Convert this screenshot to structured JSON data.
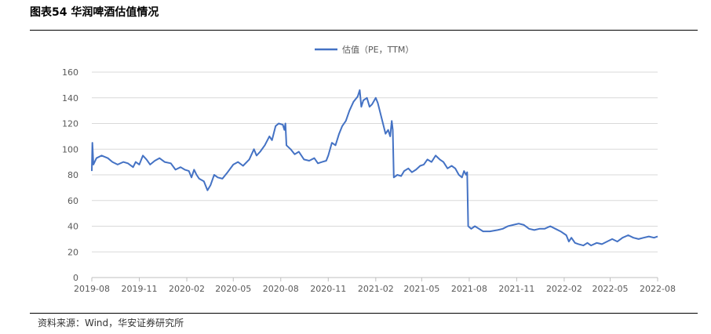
{
  "figure": {
    "title": "图表54 华润啤酒估值情况",
    "source": "资料来源：Wind，华安证券研究所"
  },
  "chart_data": {
    "type": "line",
    "xlabel": "",
    "ylabel": "",
    "ylim": [
      0,
      160
    ],
    "yticks": [
      0,
      20,
      40,
      60,
      80,
      100,
      120,
      140,
      160
    ],
    "xticks": [
      "2019-08",
      "2019-11",
      "2020-02",
      "2020-05",
      "2020-08",
      "2020-11",
      "2021-02",
      "2021-05",
      "2021-08",
      "2021-11",
      "2022-02",
      "2022-05",
      "2022-08"
    ],
    "grid": "horizontal",
    "legend_position": "top-center",
    "series": [
      {
        "name": "估值（PE，TTM）",
        "color": "#4472C4",
        "points": [
          [
            "2019-08-01",
            83
          ],
          [
            "2019-08-02",
            105
          ],
          [
            "2019-08-04",
            88
          ],
          [
            "2019-08-10",
            93
          ],
          [
            "2019-08-20",
            95
          ],
          [
            "2019-09-01",
            93
          ],
          [
            "2019-09-10",
            90
          ],
          [
            "2019-09-20",
            88
          ],
          [
            "2019-10-01",
            90
          ],
          [
            "2019-10-10",
            89
          ],
          [
            "2019-10-20",
            86
          ],
          [
            "2019-10-25",
            90
          ],
          [
            "2019-11-01",
            88
          ],
          [
            "2019-11-08",
            95
          ],
          [
            "2019-11-15",
            92
          ],
          [
            "2019-11-22",
            88
          ],
          [
            "2019-12-01",
            91
          ],
          [
            "2019-12-10",
            93
          ],
          [
            "2019-12-20",
            90
          ],
          [
            "2020-01-01",
            89
          ],
          [
            "2020-01-10",
            84
          ],
          [
            "2020-01-20",
            86
          ],
          [
            "2020-01-28",
            84
          ],
          [
            "2020-02-05",
            83
          ],
          [
            "2020-02-10",
            78
          ],
          [
            "2020-02-15",
            84
          ],
          [
            "2020-02-20",
            80
          ],
          [
            "2020-02-25",
            77
          ],
          [
            "2020-03-05",
            75
          ],
          [
            "2020-03-12",
            68
          ],
          [
            "2020-03-18",
            72
          ],
          [
            "2020-03-25",
            80
          ],
          [
            "2020-04-01",
            78
          ],
          [
            "2020-04-10",
            77
          ],
          [
            "2020-04-20",
            82
          ],
          [
            "2020-05-01",
            88
          ],
          [
            "2020-05-10",
            90
          ],
          [
            "2020-05-20",
            87
          ],
          [
            "2020-06-01",
            92
          ],
          [
            "2020-06-10",
            100
          ],
          [
            "2020-06-15",
            95
          ],
          [
            "2020-06-22",
            98
          ],
          [
            "2020-07-01",
            103
          ],
          [
            "2020-07-10",
            110
          ],
          [
            "2020-07-15",
            107
          ],
          [
            "2020-07-22",
            118
          ],
          [
            "2020-07-28",
            120
          ],
          [
            "2020-08-05",
            119
          ],
          [
            "2020-08-08",
            115
          ],
          [
            "2020-08-10",
            120
          ],
          [
            "2020-08-12",
            103
          ],
          [
            "2020-08-20",
            100
          ],
          [
            "2020-08-28",
            96
          ],
          [
            "2020-09-05",
            98
          ],
          [
            "2020-09-15",
            92
          ],
          [
            "2020-09-25",
            91
          ],
          [
            "2020-10-05",
            93
          ],
          [
            "2020-10-12",
            89
          ],
          [
            "2020-10-20",
            90
          ],
          [
            "2020-10-28",
            91
          ],
          [
            "2020-11-01",
            95
          ],
          [
            "2020-11-08",
            105
          ],
          [
            "2020-11-15",
            103
          ],
          [
            "2020-11-22",
            112
          ],
          [
            "2020-11-28",
            118
          ],
          [
            "2020-12-05",
            122
          ],
          [
            "2020-12-12",
            130
          ],
          [
            "2020-12-20",
            137
          ],
          [
            "2020-12-28",
            141
          ],
          [
            "2021-01-01",
            146
          ],
          [
            "2021-01-04",
            133
          ],
          [
            "2021-01-08",
            138
          ],
          [
            "2021-01-15",
            140
          ],
          [
            "2021-01-20",
            133
          ],
          [
            "2021-01-25",
            135
          ],
          [
            "2021-02-01",
            140
          ],
          [
            "2021-02-05",
            136
          ],
          [
            "2021-02-10",
            128
          ],
          [
            "2021-02-15",
            120
          ],
          [
            "2021-02-20",
            112
          ],
          [
            "2021-02-25",
            115
          ],
          [
            "2021-03-01",
            110
          ],
          [
            "2021-03-04",
            122
          ],
          [
            "2021-03-06",
            115
          ],
          [
            "2021-03-08",
            78
          ],
          [
            "2021-03-15",
            80
          ],
          [
            "2021-03-22",
            79
          ],
          [
            "2021-03-28",
            83
          ],
          [
            "2021-04-05",
            85
          ],
          [
            "2021-04-12",
            82
          ],
          [
            "2021-04-20",
            84
          ],
          [
            "2021-04-28",
            87
          ],
          [
            "2021-05-05",
            88
          ],
          [
            "2021-05-12",
            92
          ],
          [
            "2021-05-20",
            90
          ],
          [
            "2021-05-28",
            95
          ],
          [
            "2021-06-05",
            92
          ],
          [
            "2021-06-12",
            90
          ],
          [
            "2021-06-20",
            85
          ],
          [
            "2021-06-28",
            87
          ],
          [
            "2021-07-05",
            85
          ],
          [
            "2021-07-12",
            80
          ],
          [
            "2021-07-18",
            78
          ],
          [
            "2021-07-22",
            83
          ],
          [
            "2021-07-26",
            80
          ],
          [
            "2021-07-28",
            82
          ],
          [
            "2021-07-30",
            40
          ],
          [
            "2021-08-05",
            38
          ],
          [
            "2021-08-12",
            40
          ],
          [
            "2021-08-20",
            38
          ],
          [
            "2021-08-28",
            36
          ],
          [
            "2021-09-10",
            36
          ],
          [
            "2021-09-25",
            37
          ],
          [
            "2021-10-05",
            38
          ],
          [
            "2021-10-15",
            40
          ],
          [
            "2021-10-25",
            41
          ],
          [
            "2021-11-05",
            42
          ],
          [
            "2021-11-15",
            41
          ],
          [
            "2021-11-25",
            38
          ],
          [
            "2021-12-05",
            37
          ],
          [
            "2021-12-15",
            38
          ],
          [
            "2021-12-25",
            38
          ],
          [
            "2022-01-05",
            40
          ],
          [
            "2022-01-15",
            38
          ],
          [
            "2022-01-25",
            36
          ],
          [
            "2022-02-05",
            33
          ],
          [
            "2022-02-10",
            28
          ],
          [
            "2022-02-15",
            31
          ],
          [
            "2022-02-22",
            27
          ],
          [
            "2022-03-01",
            26
          ],
          [
            "2022-03-10",
            25
          ],
          [
            "2022-03-18",
            27
          ],
          [
            "2022-03-25",
            25
          ],
          [
            "2022-04-05",
            27
          ],
          [
            "2022-04-15",
            26
          ],
          [
            "2022-04-25",
            28
          ],
          [
            "2022-05-05",
            30
          ],
          [
            "2022-05-15",
            28
          ],
          [
            "2022-05-25",
            31
          ],
          [
            "2022-06-05",
            33
          ],
          [
            "2022-06-15",
            31
          ],
          [
            "2022-06-25",
            30
          ],
          [
            "2022-07-05",
            31
          ],
          [
            "2022-07-15",
            32
          ],
          [
            "2022-07-25",
            31
          ],
          [
            "2022-08-01",
            32
          ]
        ]
      }
    ]
  }
}
